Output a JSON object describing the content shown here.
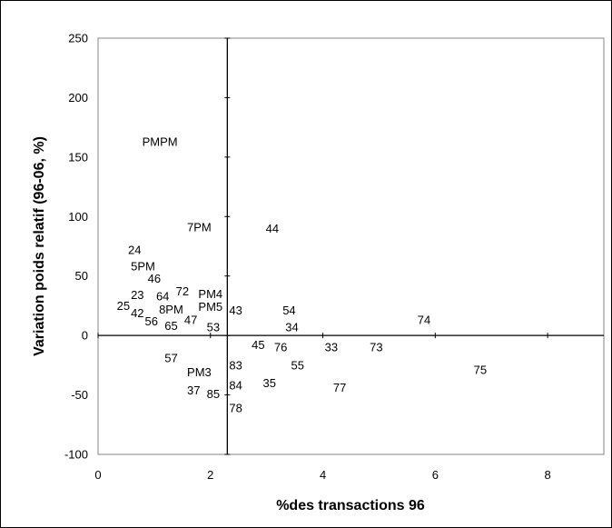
{
  "chart_data": {
    "type": "scatter",
    "title": "",
    "xlabel": "%des transactions 96",
    "ylabel": "Variation poids relatif (96-06, %)",
    "xlim": [
      0,
      9
    ],
    "ylim": [
      -100,
      250
    ],
    "xticks": [
      "0",
      "2",
      "4",
      "6",
      "8"
    ],
    "yticks": [
      "-100",
      "-50",
      "0",
      "50",
      "100",
      "150",
      "200",
      "250"
    ],
    "y_axis_crossing_x": 2.3,
    "grid": false,
    "points": [
      {
        "label": "PMPM",
        "x": 1.1,
        "y": 163
      },
      {
        "label": "7PM",
        "x": 1.8,
        "y": 91
      },
      {
        "label": "44",
        "x": 3.1,
        "y": 90
      },
      {
        "label": "24",
        "x": 0.65,
        "y": 72
      },
      {
        "label": "5PM",
        "x": 0.8,
        "y": 58
      },
      {
        "label": "46",
        "x": 1.0,
        "y": 48
      },
      {
        "label": "23",
        "x": 0.7,
        "y": 34
      },
      {
        "label": "64",
        "x": 1.15,
        "y": 33
      },
      {
        "label": "72",
        "x": 1.5,
        "y": 37
      },
      {
        "label": "PM4",
        "x": 2.0,
        "y": 35
      },
      {
        "label": "25",
        "x": 0.45,
        "y": 25
      },
      {
        "label": "8PM",
        "x": 1.3,
        "y": 22
      },
      {
        "label": "PM5",
        "x": 2.0,
        "y": 24
      },
      {
        "label": "43",
        "x": 2.45,
        "y": 21
      },
      {
        "label": "54",
        "x": 3.4,
        "y": 21
      },
      {
        "label": "42",
        "x": 0.7,
        "y": 19
      },
      {
        "label": "56",
        "x": 0.95,
        "y": 12
      },
      {
        "label": "65",
        "x": 1.3,
        "y": 8
      },
      {
        "label": "47",
        "x": 1.65,
        "y": 13
      },
      {
        "label": "53",
        "x": 2.05,
        "y": 7
      },
      {
        "label": "34",
        "x": 3.45,
        "y": 7
      },
      {
        "label": "74",
        "x": 5.8,
        "y": 13
      },
      {
        "label": "45",
        "x": 2.85,
        "y": -8
      },
      {
        "label": "76",
        "x": 3.25,
        "y": -10
      },
      {
        "label": "33",
        "x": 4.15,
        "y": -10
      },
      {
        "label": "73",
        "x": 4.95,
        "y": -10
      },
      {
        "label": "57",
        "x": 1.3,
        "y": -19
      },
      {
        "label": "83",
        "x": 2.45,
        "y": -25
      },
      {
        "label": "55",
        "x": 3.55,
        "y": -25
      },
      {
        "label": "75",
        "x": 6.8,
        "y": -29
      },
      {
        "label": "PM3",
        "x": 1.8,
        "y": -31
      },
      {
        "label": "35",
        "x": 3.05,
        "y": -40
      },
      {
        "label": "84",
        "x": 2.45,
        "y": -42
      },
      {
        "label": "77",
        "x": 4.3,
        "y": -44
      },
      {
        "label": "37",
        "x": 1.7,
        "y": -46
      },
      {
        "label": "85",
        "x": 2.05,
        "y": -49
      },
      {
        "label": "78",
        "x": 2.45,
        "y": -61
      }
    ]
  }
}
